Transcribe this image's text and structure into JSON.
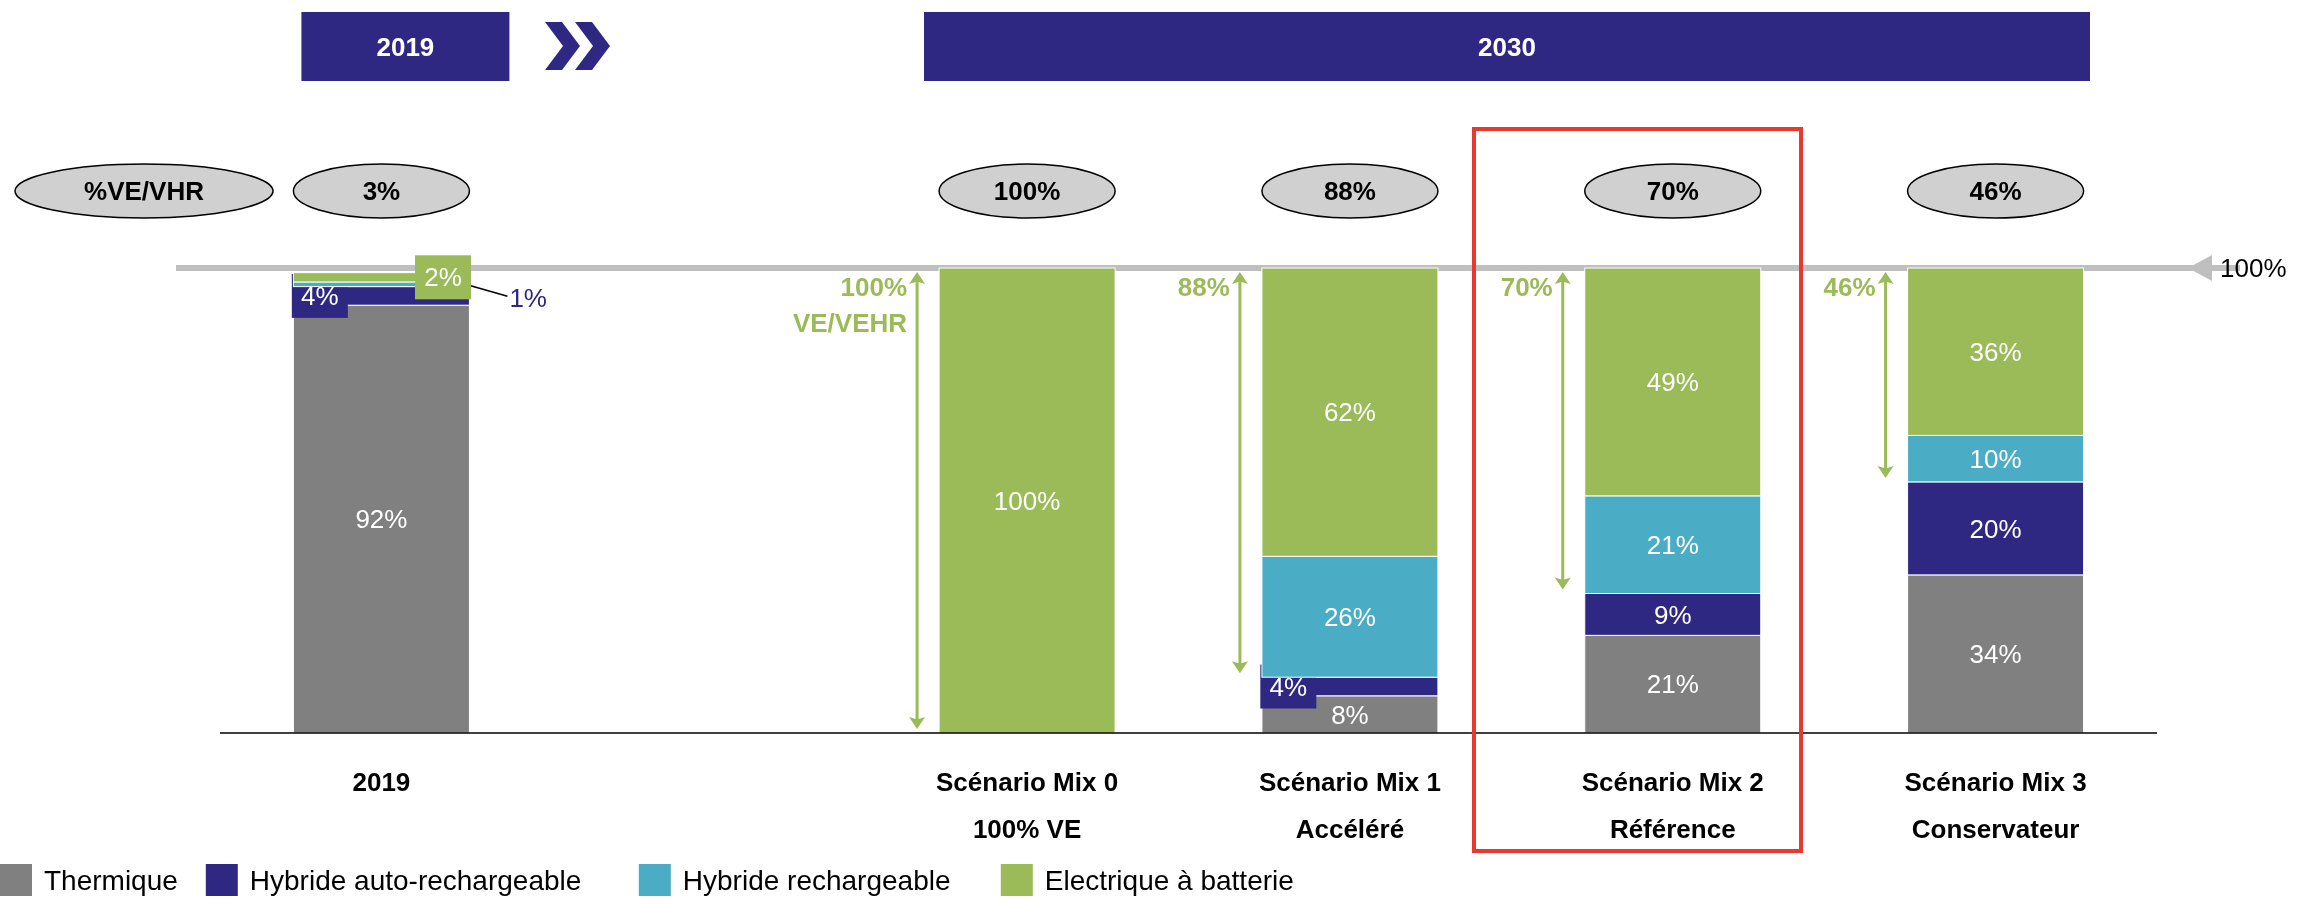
{
  "chart_data": {
    "type": "bar",
    "stacked": true,
    "categories": [
      "2019",
      null,
      "Scénario Mix 0\n100% VE",
      "Scénario Mix 1\nAccéléré",
      "Scénario Mix 2\nRéférence",
      "Scénario Mix 3\nConservateur"
    ],
    "series": [
      {
        "name": "Thermique",
        "color": "#808080",
        "values": [
          92,
          null,
          0,
          8,
          21,
          34
        ],
        "value_labels": [
          "92%",
          null,
          null,
          "8%",
          "21%",
          "34%"
        ]
      },
      {
        "name": "Hybride auto-rechargeable",
        "color": "#2e2882",
        "values": [
          4,
          null,
          0,
          4,
          9,
          20
        ],
        "value_labels": [
          "4%",
          null,
          null,
          "4%",
          "9%",
          "20%"
        ]
      },
      {
        "name": "Hybride rechargeable",
        "color": "#4bacc6",
        "values": [
          1,
          null,
          0,
          26,
          21,
          10
        ],
        "value_labels": [
          "1%",
          null,
          null,
          "26%",
          "21%",
          "10%"
        ]
      },
      {
        "name": "Electrique à batterie",
        "color": "#9bbb59",
        "values": [
          2,
          null,
          100,
          62,
          49,
          36
        ],
        "value_labels": [
          "2%",
          null,
          "100%",
          "62%",
          "49%",
          "36%"
        ]
      }
    ],
    "ylim": [
      0,
      100
    ],
    "tick_labels": "x",
    "legend": "bottom left",
    "ref_lines": [
      {
        "axis": "y",
        "value": 100,
        "label": "100%",
        "color": "#bfbfbf"
      }
    ],
    "annotations": [
      "2019",
      "2030",
      "%VE/VHR",
      "3%",
      "100%",
      "88%",
      "70%",
      "46%",
      "100% VE/VEHR",
      "88%",
      "70%",
      "46%"
    ]
  }
}
